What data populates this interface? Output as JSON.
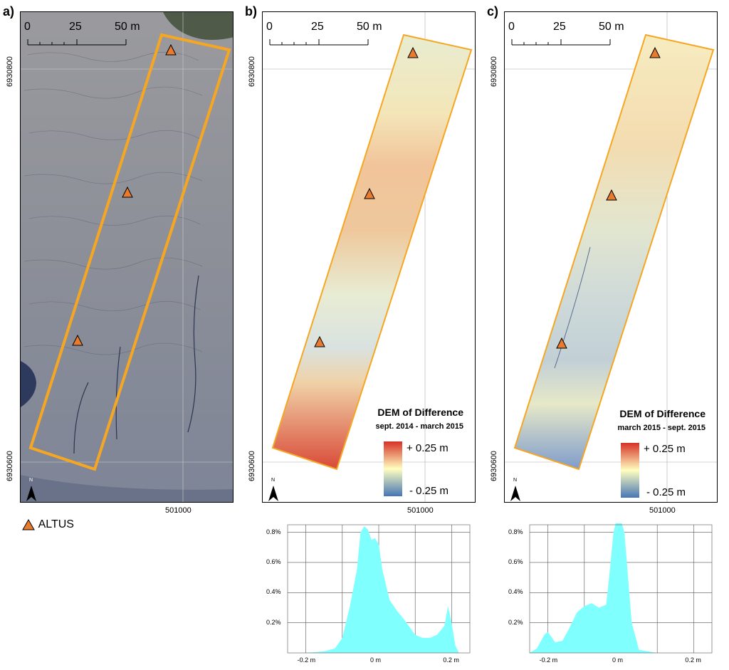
{
  "panels": [
    {
      "label": "a)"
    },
    {
      "label": "b)"
    },
    {
      "label": "c)"
    }
  ],
  "scale_bar": {
    "ticks": [
      "0",
      "25",
      "50 m"
    ]
  },
  "coords": {
    "northing_top": "6930800",
    "northing_bottom": "6930600",
    "easting": "501000"
  },
  "north_arrow": {
    "label": "N"
  },
  "legend_b": {
    "title": "DEM of Difference",
    "period": "sept. 2014 - march 2015",
    "max": "+ 0.25 m",
    "min": "- 0.25 m"
  },
  "legend_c": {
    "title": "DEM of Difference",
    "period": "march 2015 - sept. 2015",
    "max": "+ 0.25 m",
    "min": "- 0.25 m"
  },
  "marker_legend": {
    "label": "ALTUS",
    "color": "#e87b2e"
  },
  "colors": {
    "outline": "#f5a623",
    "hist_fill": "#80ffff",
    "dod_high": "#d73027",
    "dod_mid": "#ffffbf",
    "dod_low": "#4575b4"
  },
  "chart_data": [
    {
      "type": "area",
      "title": "",
      "xlabel": "",
      "ylabel": "",
      "x_ticks": [
        "-0.2 m",
        "0 m",
        "0.2 m"
      ],
      "y_ticks": [
        "0.2%",
        "0.4%",
        "0.6%",
        "0.8%"
      ],
      "xlim": [
        -0.25,
        0.25
      ],
      "ylim": [
        0,
        0.85
      ],
      "x": [
        -0.25,
        -0.2,
        -0.15,
        -0.12,
        -0.1,
        -0.08,
        -0.06,
        -0.05,
        -0.04,
        -0.03,
        -0.02,
        -0.01,
        0,
        0.01,
        0.02,
        0.03,
        0.05,
        0.07,
        0.1,
        0.12,
        0.14,
        0.16,
        0.18,
        0.19,
        0.2,
        0.21,
        0.22,
        0.25
      ],
      "y": [
        0,
        0,
        0.01,
        0.03,
        0.1,
        0.3,
        0.55,
        0.8,
        0.84,
        0.82,
        0.75,
        0.76,
        0.72,
        0.55,
        0.45,
        0.35,
        0.28,
        0.22,
        0.12,
        0.1,
        0.1,
        0.12,
        0.18,
        0.31,
        0.2,
        0.05,
        0,
        0
      ]
    },
    {
      "type": "area",
      "title": "",
      "xlabel": "",
      "ylabel": "",
      "x_ticks": [
        "-0.2 m",
        "0 m",
        "0.2 m"
      ],
      "y_ticks": [
        "0.2%",
        "0.4%",
        "0.6%",
        "0.8%"
      ],
      "xlim": [
        -0.25,
        0.25
      ],
      "ylim": [
        0,
        0.85
      ],
      "x": [
        -0.25,
        -0.23,
        -0.21,
        -0.2,
        -0.18,
        -0.16,
        -0.14,
        -0.12,
        -0.1,
        -0.08,
        -0.06,
        -0.04,
        -0.03,
        -0.02,
        -0.01,
        0,
        0.01,
        0.02,
        0.03,
        0.05,
        0.1,
        0.25
      ],
      "y": [
        0,
        0.03,
        0.12,
        0.14,
        0.07,
        0.08,
        0.17,
        0.27,
        0.31,
        0.33,
        0.3,
        0.32,
        0.55,
        0.8,
        0.9,
        0.88,
        0.8,
        0.5,
        0.2,
        0.02,
        0,
        0
      ]
    }
  ]
}
